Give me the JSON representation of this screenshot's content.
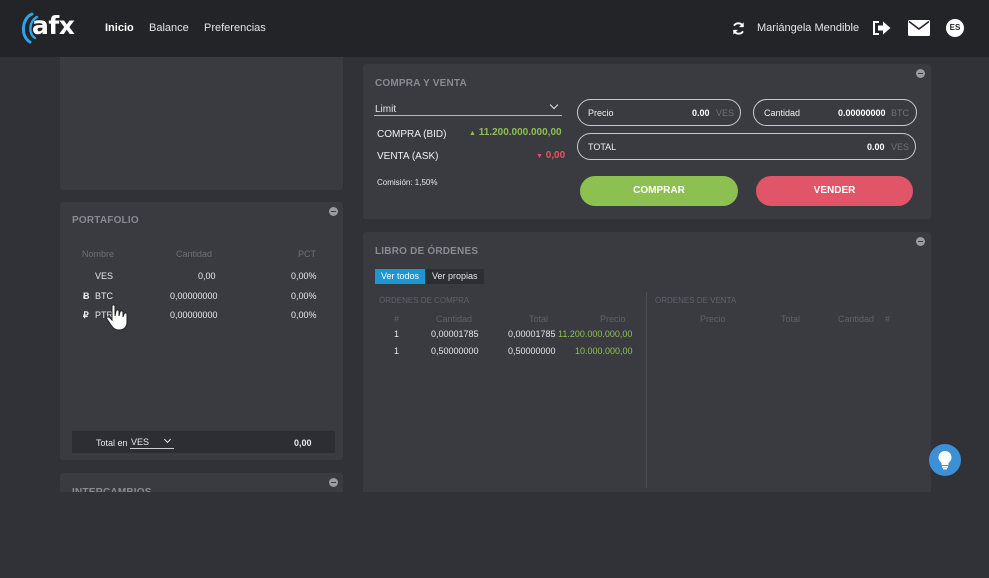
{
  "app": {
    "logo_text": "afx",
    "nav": [
      "Inicio",
      "Balance",
      "Preferencias"
    ],
    "user_name": "Mariángela Mendible",
    "language": "ES"
  },
  "portfolio": {
    "title": "PORTAFOLIO",
    "columns": [
      "Nombre",
      "Cantidad",
      "PCT"
    ],
    "rows": [
      {
        "symbol": "",
        "name": "VES",
        "amount": "0,00",
        "pct": "0,00%"
      },
      {
        "symbol": "Ƀ",
        "name": "BTC",
        "amount": "0,00000000",
        "pct": "0,00%"
      },
      {
        "symbol": "₽",
        "name": "PTR",
        "amount": "0,00000000",
        "pct": "0,00%"
      }
    ],
    "total_label": "Total en",
    "total_currency": "VES",
    "total_value": "0,00"
  },
  "exchanges": {
    "title": "INTERCAMBIOS"
  },
  "trade": {
    "title": "COMPRA Y VENTA",
    "order_type": "Limit",
    "bid_label": "COMPRA (BID)",
    "bid_value": "11.200.000.000,00",
    "ask_label": "VENTA (ASK)",
    "ask_value": "0,00",
    "commission": "Comisión: 1,50%",
    "price_label": "Precio",
    "price_value": "0.00",
    "price_unit": "VES",
    "qty_label": "Cantidad",
    "qty_value": "0.00000000",
    "qty_unit": "BTC",
    "total_label": "TOTAL",
    "total_value": "0.00",
    "total_unit": "VES",
    "buy_label": "COMPRAR",
    "sell_label": "VENDER",
    "colors": {
      "buy": "#8cc152",
      "sell": "#e05567"
    }
  },
  "orderbook": {
    "title": "LIBRO DE ÓRDENES",
    "tabs": [
      "Ver todos",
      "Ver propias"
    ],
    "buy_title": "ÓRDENES DE COMPRA",
    "sell_title": "ÓRDENES DE VENTA",
    "buy_columns": [
      "#",
      "Cantidad",
      "Total",
      "Precio"
    ],
    "sell_columns": [
      "Precio",
      "Total",
      "Cantidad",
      "#"
    ],
    "buy_rows": [
      {
        "n": "1",
        "qty": "0,00001785",
        "total": "0,00001785",
        "price": "11.200.000.000,00"
      },
      {
        "n": "1",
        "qty": "0,50000000",
        "total": "0,50000000",
        "price": "10.000.000,00"
      }
    ]
  }
}
